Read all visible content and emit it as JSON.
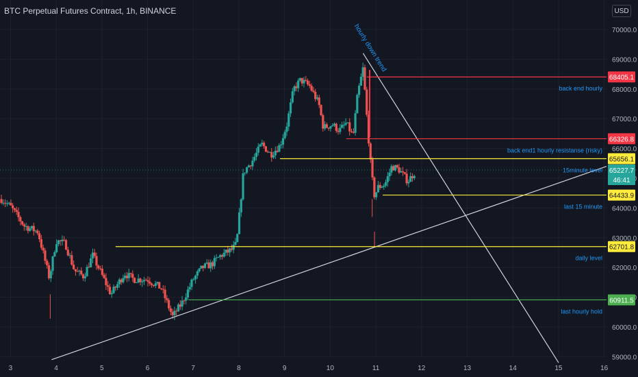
{
  "header": {
    "title": "BTC Perpetual Futures Contract, 1h, BINANCE",
    "currency": "USD"
  },
  "colors": {
    "background": "#131722",
    "up": "#26a69a",
    "down": "#ef5350",
    "grid": "#1e222d",
    "axis_text": "#b2b5be",
    "annotation": "#2196f3",
    "red_level": "#f23645",
    "yellow_level": "#ffeb3b",
    "green_level": "#4caf50",
    "trend_line": "#d1d4dc"
  },
  "chart_data": {
    "type": "candlestick",
    "symbol": "BTC Perpetual Futures Contract",
    "interval": "1h",
    "exchange": "BINANCE",
    "y_ticks": [
      70000,
      69000,
      68000,
      67000,
      66000,
      65000,
      64000,
      63000,
      62000,
      61000,
      60000,
      59000
    ],
    "y_tick_labels": [
      "70000.0",
      "69000.0",
      "68000.0",
      "67000.0",
      "66000.0",
      "65000.0",
      "64000.0",
      "63000.0",
      "62000.0",
      "61000.0",
      "60000.0",
      "59000.0"
    ],
    "x_ticks": [
      3,
      4,
      5,
      6,
      7,
      8,
      9,
      10,
      11,
      12,
      13,
      14,
      15,
      16
    ],
    "x_tick_labels": [
      "3",
      "4",
      "5",
      "6",
      "7",
      "8",
      "9",
      "10",
      "11",
      "12",
      "13",
      "14",
      "15",
      "16"
    ],
    "ylim": [
      58900,
      70600
    ],
    "xlim": [
      2.77,
      16.05
    ],
    "anchors": [
      [
        2.8,
        64300
      ],
      [
        3.0,
        64050
      ],
      [
        3.3,
        63400
      ],
      [
        3.6,
        63200
      ],
      [
        3.85,
        61650
      ],
      [
        4.0,
        62900
      ],
      [
        4.2,
        62800
      ],
      [
        4.4,
        61900
      ],
      [
        4.6,
        61700
      ],
      [
        4.8,
        62400
      ],
      [
        5.2,
        61100
      ],
      [
        5.5,
        61800
      ],
      [
        5.7,
        61600
      ],
      [
        6.0,
        61600
      ],
      [
        6.3,
        61300
      ],
      [
        6.55,
        60350
      ],
      [
        6.75,
        60800
      ],
      [
        7.0,
        61600
      ],
      [
        7.2,
        62000
      ],
      [
        7.4,
        62100
      ],
      [
        7.6,
        62400
      ],
      [
        7.85,
        62600
      ],
      [
        7.95,
        62800
      ],
      [
        8.1,
        65200
      ],
      [
        8.3,
        65600
      ],
      [
        8.5,
        66150
      ],
      [
        8.7,
        65800
      ],
      [
        8.9,
        66100
      ],
      [
        9.05,
        66800
      ],
      [
        9.2,
        68000
      ],
      [
        9.35,
        68300
      ],
      [
        9.55,
        68100
      ],
      [
        9.75,
        67500
      ],
      [
        9.85,
        66700
      ],
      [
        10.05,
        66800
      ],
      [
        10.2,
        66600
      ],
      [
        10.35,
        66850
      ],
      [
        10.5,
        66400
      ],
      [
        10.6,
        67800
      ],
      [
        10.72,
        68700
      ],
      [
        10.82,
        66700
      ],
      [
        10.9,
        65200
      ],
      [
        10.97,
        64400
      ],
      [
        11.05,
        64700
      ],
      [
        11.2,
        64800
      ],
      [
        11.35,
        65400
      ],
      [
        11.5,
        65300
      ],
      [
        11.7,
        64900
      ],
      [
        11.85,
        65200
      ]
    ],
    "trend_lines": [
      {
        "label": "",
        "from": [
          3.9,
          58900
        ],
        "to": [
          16.05,
          65400
        ]
      },
      {
        "label": "hourly down trend",
        "from": [
          10.72,
          69200
        ],
        "to": [
          15.0,
          58800
        ]
      }
    ],
    "levels": [
      {
        "price": 68405.1,
        "price_label": "68405.1",
        "label": "back end hourly",
        "color": "red",
        "x_start": 10.8
      },
      {
        "price": 66326.8,
        "price_label": "66326.8",
        "label": "back end1 hourly resistanse (risky)",
        "color": "red",
        "x_start": 10.35
      },
      {
        "price": 65656.1,
        "price_label": "65656.1",
        "label": "15minute level",
        "color": "yellow",
        "x_start": 8.9
      },
      {
        "price": 64433.9,
        "price_label": "64433.9",
        "label": "last 15 minute",
        "color": "yellow",
        "x_start": 11.15
      },
      {
        "price": 62701.8,
        "price_label": "62701.8",
        "label": "daily level",
        "color": "yellow",
        "x_start": 5.3
      },
      {
        "price": 60911.5,
        "price_label": "60911.5",
        "label": "last hourly hold",
        "color": "green",
        "x_start": 6.9
      }
    ],
    "current_price": {
      "price": 65227.7,
      "price_label": "65227.7",
      "countdown": "46:41"
    }
  }
}
